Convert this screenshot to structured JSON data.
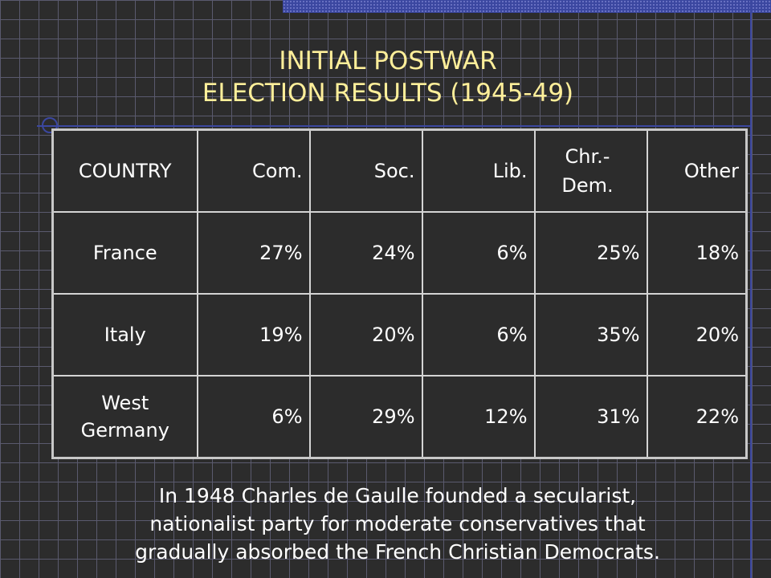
{
  "title": {
    "line1": "INITIAL POSTWAR",
    "line2": "ELECTION RESULTS (1945-49)"
  },
  "table": {
    "headers": [
      "COUNTRY",
      "Com.",
      "Soc.",
      "Lib.",
      "Chr.-Dem.",
      "Other"
    ],
    "header_chr_line1": "Chr.-",
    "header_chr_line2": "Dem.",
    "rows": [
      {
        "country": "France",
        "country_line1": "France",
        "country_line2": "",
        "values": [
          "27%",
          "24%",
          "6%",
          "25%",
          "18%"
        ]
      },
      {
        "country": "Italy",
        "country_line1": "Italy",
        "country_line2": "",
        "values": [
          "19%",
          "20%",
          "6%",
          "35%",
          "20%"
        ]
      },
      {
        "country": "West Germany",
        "country_line1": "West",
        "country_line2": "Germany",
        "values": [
          "6%",
          "29%",
          "12%",
          "31%",
          "22%"
        ]
      }
    ]
  },
  "note": {
    "line1": "In 1948 Charles de Gaulle founded a secularist,",
    "line2": "nationalist party for moderate conservatives that",
    "line3": "gradually absorbed the French Christian Democrats."
  },
  "colors": {
    "background": "#2c2c2c",
    "title": "#ffef9a",
    "accent": "#3b47a0"
  }
}
